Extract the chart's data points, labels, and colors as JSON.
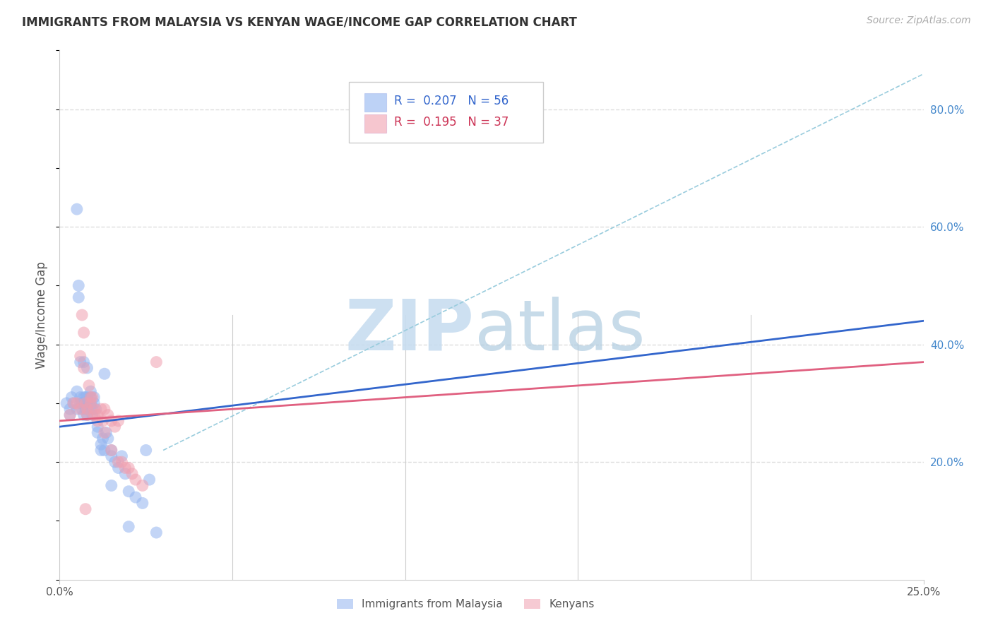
{
  "title": "IMMIGRANTS FROM MALAYSIA VS KENYAN WAGE/INCOME GAP CORRELATION CHART",
  "source": "Source: ZipAtlas.com",
  "ylabel": "Wage/Income Gap",
  "right_yticks": [
    "20.0%",
    "40.0%",
    "60.0%",
    "80.0%"
  ],
  "right_ytick_vals": [
    20.0,
    40.0,
    60.0,
    80.0
  ],
  "legend_blue_r": "0.207",
  "legend_blue_n": "56",
  "legend_pink_r": "0.195",
  "legend_pink_n": "37",
  "legend_label1": "Immigrants from Malaysia",
  "legend_label2": "Kenyans",
  "blue_color": "#92b4f0",
  "pink_color": "#f0a0b0",
  "trend_blue_color": "#3366cc",
  "trend_pink_color": "#e06080",
  "dashed_color": "#99ccdd",
  "background_color": "#ffffff",
  "grid_color": "#dddddd",
  "xmin": 0.0,
  "xmax": 25.0,
  "ymin": 0.0,
  "ymax": 90.0,
  "blue_x": [
    0.2,
    0.3,
    0.3,
    0.35,
    0.4,
    0.5,
    0.5,
    0.55,
    0.55,
    0.6,
    0.6,
    0.65,
    0.65,
    0.7,
    0.7,
    0.7,
    0.75,
    0.75,
    0.75,
    0.8,
    0.8,
    0.8,
    0.9,
    0.9,
    0.9,
    0.95,
    0.95,
    1.0,
    1.0,
    1.05,
    1.1,
    1.1,
    1.2,
    1.2,
    1.25,
    1.3,
    1.35,
    1.4,
    1.5,
    1.5,
    1.6,
    1.7,
    1.8,
    1.9,
    2.0,
    2.2,
    2.4,
    2.5,
    2.6,
    0.5,
    0.6,
    0.8,
    1.3,
    1.5,
    2.0,
    2.8
  ],
  "blue_y": [
    30.0,
    29.0,
    28.0,
    31.0,
    30.0,
    29.0,
    32.0,
    50.0,
    48.0,
    31.0,
    30.0,
    30.0,
    29.0,
    28.0,
    31.0,
    37.0,
    29.0,
    30.0,
    31.0,
    28.0,
    31.0,
    30.0,
    32.0,
    31.0,
    30.0,
    28.0,
    29.0,
    30.0,
    31.0,
    29.0,
    25.0,
    26.0,
    22.0,
    23.0,
    24.0,
    22.0,
    25.0,
    24.0,
    21.0,
    22.0,
    20.0,
    19.0,
    21.0,
    18.0,
    15.0,
    14.0,
    13.0,
    22.0,
    17.0,
    63.0,
    37.0,
    36.0,
    35.0,
    16.0,
    9.0,
    8.0
  ],
  "pink_x": [
    0.3,
    0.4,
    0.5,
    0.6,
    0.65,
    0.7,
    0.75,
    0.8,
    0.8,
    0.9,
    0.9,
    1.0,
    1.0,
    1.1,
    1.2,
    1.25,
    1.3,
    1.4,
    1.5,
    1.6,
    1.7,
    1.8,
    1.9,
    2.0,
    2.1,
    2.2,
    2.4,
    0.6,
    0.7,
    0.85,
    0.95,
    1.1,
    1.3,
    1.5,
    1.7,
    2.8,
    0.75
  ],
  "pink_y": [
    28.0,
    30.0,
    30.0,
    29.0,
    45.0,
    42.0,
    30.0,
    29.0,
    28.0,
    31.0,
    30.0,
    29.0,
    28.0,
    28.0,
    29.0,
    27.0,
    29.0,
    28.0,
    27.0,
    26.0,
    27.0,
    20.0,
    19.0,
    19.0,
    18.0,
    17.0,
    16.0,
    38.0,
    36.0,
    33.0,
    31.0,
    27.0,
    25.0,
    22.0,
    20.0,
    37.0,
    12.0
  ],
  "blue_trend_x": [
    0.0,
    25.0
  ],
  "blue_trend_y": [
    26.0,
    44.0
  ],
  "pink_trend_x": [
    0.0,
    25.0
  ],
  "pink_trend_y": [
    27.0,
    37.0
  ],
  "dashed_trend_x": [
    3.0,
    25.0
  ],
  "dashed_trend_y": [
    22.0,
    86.0
  ]
}
